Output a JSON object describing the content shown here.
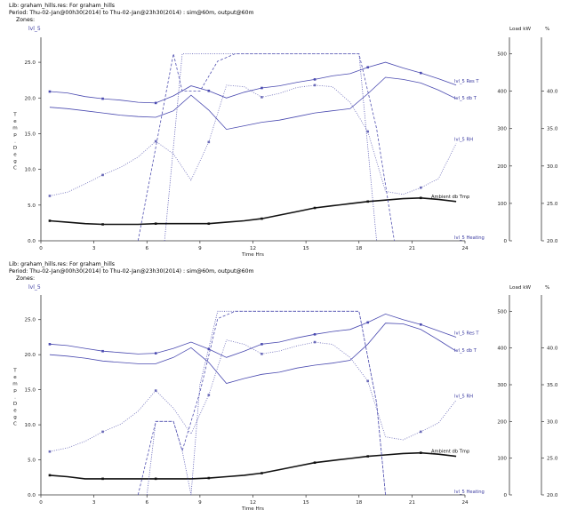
{
  "panels": [
    {
      "header": {
        "title": "Lib: graham_hills.res: For graham_hills",
        "period": "Period: Thu-02-Jan@00h30(2014) to Thu-02-Jan@23h30(2014) : sim@60m, output@60m",
        "zones_label": "Zones:"
      }
    },
    {
      "header": {
        "title": "Lib: graham_hills.res: For graham_hills",
        "period": "Period: Thu-02-Jan@00h30(2014) to Thu-02-Jan@23h30(2014) : sim@60m, output@60m",
        "zones_label": "Zones:"
      }
    }
  ],
  "chart_data": [
    {
      "type": "line",
      "zone_label": "lvl_5",
      "xlabel": "Time Hrs",
      "ylabel": "Temp. DegC",
      "y2label": "Load kW",
      "y3label": "%",
      "xlim": [
        0,
        24
      ],
      "ylim": [
        0,
        27.5
      ],
      "y2lim": [
        0,
        525
      ],
      "y3lim": [
        20,
        46.25
      ],
      "xticks": [
        0,
        3,
        6,
        9,
        12,
        15,
        18,
        21,
        24
      ],
      "yticks": [
        0.0,
        5.0,
        10.0,
        15.0,
        20.0,
        25.0
      ],
      "y2ticks": [
        0,
        100,
        200,
        300,
        400,
        500
      ],
      "y3ticks": [
        20.0,
        25.0,
        30.0,
        35.0,
        40.0
      ],
      "series": [
        {
          "name": "lvl_5 Res T",
          "axis": "temp",
          "style": "solid",
          "color": "#4a4ab0",
          "marker_x": [
            0.5,
            3.5,
            6.5,
            9.5,
            12.5,
            15.5,
            18.5,
            21.5
          ],
          "x": [
            0.5,
            1.5,
            2.5,
            3.5,
            4.5,
            5.5,
            6.5,
            7.5,
            8.5,
            9.5,
            10.5,
            11.5,
            12.5,
            13.5,
            14.5,
            15.5,
            16.5,
            17.5,
            18.5,
            19.5,
            20.5,
            21.5,
            22.5,
            23.5
          ],
          "y": [
            20.9,
            20.7,
            20.2,
            19.9,
            19.7,
            19.4,
            19.3,
            20.3,
            21.7,
            21.0,
            20.0,
            20.8,
            21.4,
            21.7,
            22.2,
            22.6,
            23.1,
            23.4,
            24.3,
            25.0,
            24.2,
            23.5,
            22.7,
            21.8
          ]
        },
        {
          "name": "lvl_5 db T",
          "axis": "temp",
          "style": "solid",
          "color": "#4a4ab0",
          "marker_x": [],
          "x": [
            0.5,
            1.5,
            2.5,
            3.5,
            4.5,
            5.5,
            6.5,
            7.5,
            8.5,
            9.5,
            10.5,
            11.5,
            12.5,
            13.5,
            14.5,
            15.5,
            16.5,
            17.5,
            18.5,
            19.5,
            20.5,
            21.5,
            22.5,
            23.5
          ],
          "y": [
            18.7,
            18.5,
            18.2,
            17.9,
            17.6,
            17.4,
            17.3,
            18.2,
            20.4,
            18.3,
            15.6,
            16.1,
            16.6,
            16.9,
            17.4,
            17.9,
            18.2,
            18.5,
            20.6,
            22.9,
            22.6,
            22.1,
            21.1,
            19.9
          ]
        },
        {
          "name": "lvl_5 RH",
          "axis": "rh",
          "style": "dotted",
          "color": "#6a6ab8",
          "marker_x": [
            0.5,
            3.5,
            6.5,
            9.5,
            12.5,
            15.5,
            18.5,
            21.5
          ],
          "x": [
            0.5,
            1.5,
            2.5,
            3.5,
            4.5,
            5.5,
            6.5,
            7.5,
            8.5,
            9.5,
            10.5,
            11.5,
            12.5,
            13.5,
            14.5,
            15.5,
            16.5,
            17.5,
            18.5,
            19.5,
            20.5,
            21.5,
            22.5,
            23.5
          ],
          "y": [
            26.0,
            26.5,
            27.6,
            28.8,
            29.8,
            31.2,
            33.3,
            31.6,
            28.1,
            33.2,
            40.8,
            40.6,
            39.2,
            39.7,
            40.5,
            40.8,
            40.6,
            38.5,
            34.6,
            26.6,
            26.2,
            27.1,
            28.3,
            33.0
          ]
        },
        {
          "name": "Ambient db Tmp",
          "axis": "temp",
          "style": "bold",
          "color": "#111111",
          "marker_x": [
            0.5,
            3.5,
            6.5,
            9.5,
            12.5,
            15.5,
            18.5,
            21.5
          ],
          "x": [
            0.5,
            1.5,
            2.5,
            3.5,
            4.5,
            5.5,
            6.5,
            7.5,
            8.5,
            9.5,
            10.5,
            11.5,
            12.5,
            13.5,
            14.5,
            15.5,
            16.5,
            17.5,
            18.5,
            19.5,
            20.5,
            21.5,
            22.5,
            23.5
          ],
          "y": [
            2.8,
            2.6,
            2.4,
            2.3,
            2.3,
            2.3,
            2.4,
            2.4,
            2.4,
            2.4,
            2.6,
            2.8,
            3.1,
            3.6,
            4.1,
            4.6,
            4.9,
            5.2,
            5.5,
            5.7,
            5.9,
            6.0,
            5.8,
            5.5
          ]
        },
        {
          "name": "lvl_5 Heating",
          "axis": "load",
          "style": "dashed",
          "color": "#5050b0",
          "marker_x": [],
          "x": [
            5.5,
            7.5,
            8.0,
            9.0,
            10.0,
            11.0,
            12.0,
            13.0,
            14.0,
            15.0,
            16.0,
            17.0,
            18.0,
            19.0,
            20.0
          ],
          "y": [
            0,
            500,
            400,
            400,
            480,
            500,
            500,
            500,
            500,
            500,
            500,
            500,
            500,
            300,
            0
          ]
        },
        {
          "name": "",
          "axis": "load",
          "style": "dotted",
          "color": "#5050b0",
          "marker_x": [],
          "x": [
            7.0,
            8.0,
            9.0,
            10.0,
            10.5,
            11.0,
            13.0,
            15.0,
            17.0,
            18.0,
            19.0
          ],
          "y": [
            0,
            500,
            500,
            500,
            500,
            500,
            500,
            500,
            500,
            500,
            0
          ]
        }
      ]
    },
    {
      "type": "line",
      "zone_label": "lvl_5",
      "xlabel": "Time Hrs",
      "ylabel": "Temp. DegC",
      "y2label": "Load kW",
      "y3label": "%",
      "xlim": [
        0,
        24
      ],
      "ylim": [
        0,
        27.5
      ],
      "y2lim": [
        0,
        525
      ],
      "y3lim": [
        20,
        46.25
      ],
      "xticks": [
        0,
        3,
        6,
        9,
        12,
        15,
        18,
        21,
        24
      ],
      "yticks": [
        0.0,
        5.0,
        10.0,
        15.0,
        20.0,
        25.0
      ],
      "y2ticks": [
        0,
        100,
        200,
        300,
        400,
        500
      ],
      "y3ticks": [
        20.0,
        25.0,
        30.0,
        35.0,
        40.0
      ],
      "series": [
        {
          "name": "lvl_5 Res T",
          "axis": "temp",
          "style": "solid",
          "color": "#4a4ab0",
          "marker_x": [
            0.5,
            3.5,
            6.5,
            9.5,
            12.5,
            15.5,
            18.5,
            21.5
          ],
          "x": [
            0.5,
            1.5,
            2.5,
            3.5,
            4.5,
            5.5,
            6.5,
            7.5,
            8.5,
            9.5,
            10.5,
            11.5,
            12.5,
            13.5,
            14.5,
            15.5,
            16.5,
            17.5,
            18.5,
            19.5,
            20.5,
            21.5,
            22.5,
            23.5
          ],
          "y": [
            21.5,
            21.3,
            20.9,
            20.5,
            20.3,
            20.1,
            20.2,
            20.9,
            21.8,
            20.8,
            19.6,
            20.5,
            21.5,
            21.8,
            22.4,
            22.9,
            23.3,
            23.6,
            24.6,
            25.8,
            25.0,
            24.3,
            23.4,
            22.5
          ]
        },
        {
          "name": "lvl_5 db T",
          "axis": "temp",
          "style": "solid",
          "color": "#4a4ab0",
          "marker_x": [],
          "x": [
            0.5,
            1.5,
            2.5,
            3.5,
            4.5,
            5.5,
            6.5,
            7.5,
            8.5,
            9.5,
            10.5,
            11.5,
            12.5,
            13.5,
            14.5,
            15.5,
            16.5,
            17.5,
            18.5,
            19.5,
            20.5,
            21.5,
            22.5,
            23.5
          ],
          "y": [
            20.0,
            19.8,
            19.5,
            19.1,
            18.9,
            18.7,
            18.7,
            19.6,
            21.0,
            18.9,
            15.9,
            16.6,
            17.2,
            17.5,
            18.1,
            18.5,
            18.8,
            19.2,
            21.5,
            24.5,
            24.4,
            23.6,
            22.1,
            20.5
          ]
        },
        {
          "name": "lvl_5 RH",
          "axis": "rh",
          "style": "dotted",
          "color": "#6a6ab8",
          "marker_x": [
            0.5,
            3.5,
            6.5,
            9.5,
            12.5,
            15.5,
            18.5,
            21.5
          ],
          "x": [
            0.5,
            1.5,
            2.5,
            3.5,
            4.5,
            5.5,
            6.5,
            7.5,
            8.5,
            9.5,
            10.5,
            11.5,
            12.5,
            13.5,
            14.5,
            15.5,
            16.5,
            17.5,
            18.5,
            19.5,
            20.5,
            21.5,
            22.5,
            23.5
          ],
          "y": [
            25.9,
            26.4,
            27.3,
            28.6,
            29.6,
            31.4,
            34.2,
            31.8,
            28.3,
            33.6,
            41.1,
            40.5,
            39.2,
            39.6,
            40.3,
            40.8,
            40.5,
            38.7,
            35.5,
            27.9,
            27.5,
            28.6,
            29.8,
            32.9
          ]
        },
        {
          "name": "Ambient db Tmp",
          "axis": "temp",
          "style": "bold",
          "color": "#111111",
          "marker_x": [
            0.5,
            3.5,
            6.5,
            9.5,
            12.5,
            15.5,
            18.5,
            21.5
          ],
          "x": [
            0.5,
            1.5,
            2.5,
            3.5,
            4.5,
            5.5,
            6.5,
            7.5,
            8.5,
            9.5,
            10.5,
            11.5,
            12.5,
            13.5,
            14.5,
            15.5,
            16.5,
            17.5,
            18.5,
            19.5,
            20.5,
            21.5,
            22.5,
            23.5
          ],
          "y": [
            2.8,
            2.6,
            2.3,
            2.3,
            2.3,
            2.3,
            2.3,
            2.3,
            2.3,
            2.4,
            2.6,
            2.8,
            3.1,
            3.6,
            4.1,
            4.6,
            4.9,
            5.2,
            5.5,
            5.7,
            5.9,
            6.0,
            5.8,
            5.5
          ]
        },
        {
          "name": "lvl_5 Heating",
          "axis": "load",
          "style": "dashed",
          "color": "#5050b0",
          "marker_x": [],
          "x": [
            5.5,
            6.5,
            7.5,
            8.0,
            9.0,
            10.0,
            11.0,
            12.0,
            13.0,
            14.0,
            15.0,
            16.0,
            17.0,
            18.0,
            19.0,
            19.5
          ],
          "y": [
            0,
            200,
            200,
            120,
            280,
            480,
            500,
            500,
            500,
            500,
            500,
            500,
            500,
            500,
            250,
            0
          ]
        },
        {
          "name": "",
          "axis": "load",
          "style": "dotted",
          "color": "#5050b0",
          "marker_x": [],
          "x": [
            6.0,
            6.5,
            7.5,
            8.0,
            8.5,
            9.0,
            10.0,
            10.5,
            12.0,
            14.0,
            16.0,
            18.0,
            19.0,
            19.5
          ],
          "y": [
            0,
            200,
            200,
            120,
            0,
            300,
            500,
            500,
            500,
            500,
            500,
            500,
            250,
            0
          ]
        }
      ]
    }
  ]
}
